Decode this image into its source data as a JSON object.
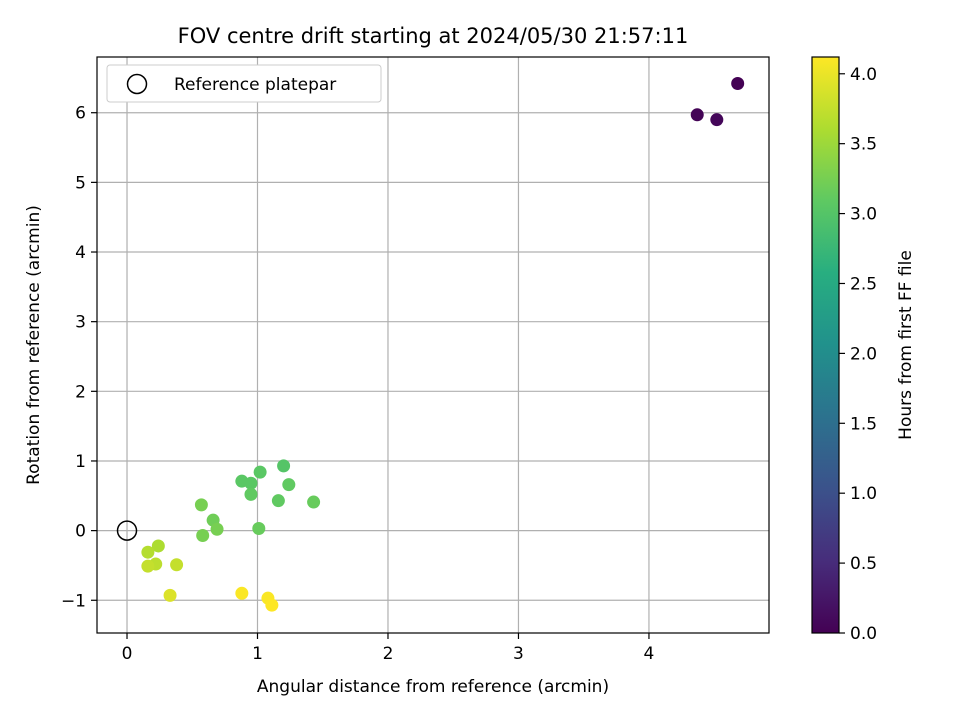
{
  "chart_data": {
    "type": "scatter",
    "title": "FOV centre drift starting at 2024/05/30 21:57:11",
    "xlabel": "Angular distance from reference (arcmin)",
    "ylabel": "Rotation from reference (arcmin)",
    "xlim": [
      -0.23,
      4.92
    ],
    "ylim": [
      -1.47,
      6.8
    ],
    "xticks": [
      0,
      1,
      2,
      3,
      4
    ],
    "yticks": [
      -1,
      0,
      1,
      2,
      3,
      4,
      5,
      6
    ],
    "xtick_labels": [
      "0",
      "1",
      "2",
      "3",
      "4"
    ],
    "ytick_labels": [
      "−1",
      "0",
      "1",
      "2",
      "3",
      "4",
      "5",
      "6"
    ],
    "grid": true,
    "legend": {
      "location": "upper-left",
      "entries": [
        "Reference platepar"
      ]
    },
    "reference_point": {
      "x": 0,
      "y": 0
    },
    "colorbar": {
      "label": "Hours from first FF file",
      "colormap": "viridis",
      "range": [
        0.0,
        4.12
      ],
      "ticks": [
        0.0,
        0.5,
        1.0,
        1.5,
        2.0,
        2.5,
        3.0,
        3.5,
        4.0
      ],
      "tick_labels": [
        "0.0",
        "0.5",
        "1.0",
        "1.5",
        "2.0",
        "2.5",
        "3.0",
        "3.5",
        "4.0"
      ]
    },
    "points": [
      {
        "x": 4.68,
        "y": 6.42,
        "hours": 0.0
      },
      {
        "x": 4.37,
        "y": 5.97,
        "hours": 0.03
      },
      {
        "x": 4.52,
        "y": 5.9,
        "hours": 0.06
      },
      {
        "x": 0.88,
        "y": 0.71,
        "hours": 3.05
      },
      {
        "x": 0.95,
        "y": 0.68,
        "hours": 3.05
      },
      {
        "x": 1.02,
        "y": 0.84,
        "hours": 3.05
      },
      {
        "x": 1.2,
        "y": 0.93,
        "hours": 3.0
      },
      {
        "x": 1.24,
        "y": 0.66,
        "hours": 3.1
      },
      {
        "x": 0.95,
        "y": 0.52,
        "hours": 3.1
      },
      {
        "x": 1.16,
        "y": 0.43,
        "hours": 3.1
      },
      {
        "x": 1.43,
        "y": 0.41,
        "hours": 3.15
      },
      {
        "x": 1.01,
        "y": 0.03,
        "hours": 3.15
      },
      {
        "x": 0.57,
        "y": 0.37,
        "hours": 3.25
      },
      {
        "x": 0.66,
        "y": 0.15,
        "hours": 3.2
      },
      {
        "x": 0.69,
        "y": 0.02,
        "hours": 3.25
      },
      {
        "x": 0.58,
        "y": -0.07,
        "hours": 3.25
      },
      {
        "x": 0.24,
        "y": -0.22,
        "hours": 3.6
      },
      {
        "x": 0.16,
        "y": -0.31,
        "hours": 3.65
      },
      {
        "x": 0.22,
        "y": -0.48,
        "hours": 3.7
      },
      {
        "x": 0.16,
        "y": -0.51,
        "hours": 3.75
      },
      {
        "x": 0.38,
        "y": -0.49,
        "hours": 3.75
      },
      {
        "x": 0.33,
        "y": -0.93,
        "hours": 3.9
      },
      {
        "x": 0.88,
        "y": -0.9,
        "hours": 4.1
      },
      {
        "x": 1.08,
        "y": -0.97,
        "hours": 4.1
      },
      {
        "x": 1.11,
        "y": -1.07,
        "hours": 4.12
      }
    ]
  }
}
